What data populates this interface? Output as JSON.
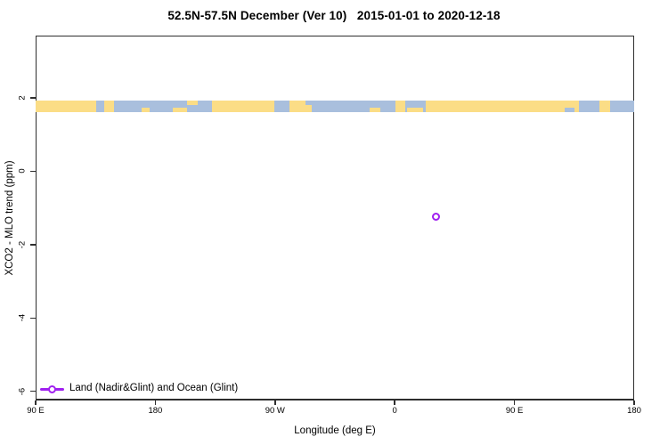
{
  "title": "52.5N-57.5N December (Ver 10)   2015-01-01 to 2020-12-18",
  "legend": {
    "label": "Land (Nadir&Glint) and Ocean (Glint)"
  },
  "colors": {
    "land": "#FBDD86",
    "ocean": "#A9BFDD",
    "point": "#A020F0",
    "axis": "#2e2e2e"
  },
  "chart_data": {
    "type": "scatter",
    "title": "52.5N-57.5N December (Ver 10)   2015-01-01 to 2020-12-18",
    "xlabel": "Longitude (deg E)",
    "ylabel": "XCO2 - MLO trend (ppm)",
    "xlim": [
      90,
      540
    ],
    "ylim": [
      -6.25,
      3.7
    ],
    "x_ticks": [
      {
        "value": 90,
        "label": "90 E"
      },
      {
        "value": 180,
        "label": "180"
      },
      {
        "value": 270,
        "label": "90 W"
      },
      {
        "value": 360,
        "label": "0"
      },
      {
        "value": 450,
        "label": "90 E"
      },
      {
        "value": 540,
        "label": "180"
      }
    ],
    "y_ticks": [
      {
        "value": 2,
        "label": "2"
      },
      {
        "value": 0,
        "label": "0"
      },
      {
        "value": -2,
        "label": "-2"
      },
      {
        "value": -4,
        "label": "-4"
      },
      {
        "value": -6,
        "label": "-6"
      }
    ],
    "band": {
      "y_range": [
        1.61,
        1.93
      ],
      "segments": [
        {
          "from": 90.0,
          "to": 135.5,
          "surface": "land"
        },
        {
          "from": 135.5,
          "to": 141.6,
          "surface": "ocean"
        },
        {
          "from": 141.6,
          "to": 149.0,
          "surface": "land"
        },
        {
          "from": 149.0,
          "to": 222.6,
          "surface": "ocean"
        },
        {
          "from": 222.6,
          "to": 269.4,
          "surface": "land"
        },
        {
          "from": 269.4,
          "to": 280.8,
          "surface": "ocean"
        },
        {
          "from": 280.8,
          "to": 297.6,
          "surface": "land"
        },
        {
          "from": 297.6,
          "to": 360.5,
          "surface": "ocean"
        },
        {
          "from": 360.5,
          "to": 367.9,
          "surface": "land"
        },
        {
          "from": 367.9,
          "to": 383.3,
          "surface": "ocean"
        },
        {
          "from": 383.3,
          "to": 498.5,
          "surface": "land"
        },
        {
          "from": 498.5,
          "to": 513.9,
          "surface": "ocean"
        },
        {
          "from": 513.9,
          "to": 521.9,
          "surface": "land"
        },
        {
          "from": 521.9,
          "to": 540.0,
          "surface": "ocean"
        }
      ],
      "flecks": [
        {
          "from": 170,
          "to": 176,
          "surface": "land",
          "edge": "bottom"
        },
        {
          "from": 193,
          "to": 204,
          "surface": "land",
          "edge": "bottom"
        },
        {
          "from": 204,
          "to": 212,
          "surface": "land",
          "edge": "top"
        },
        {
          "from": 293,
          "to": 299,
          "surface": "ocean",
          "edge": "top"
        },
        {
          "from": 341,
          "to": 349,
          "surface": "land",
          "edge": "bottom"
        },
        {
          "from": 369,
          "to": 381,
          "surface": "land",
          "edge": "bottom"
        },
        {
          "from": 488,
          "to": 495,
          "surface": "ocean",
          "edge": "bottom"
        }
      ]
    },
    "points": [
      {
        "x": 390.7,
        "y": -1.25,
        "series": "Land (Nadir&Glint) and Ocean (Glint)"
      }
    ]
  }
}
